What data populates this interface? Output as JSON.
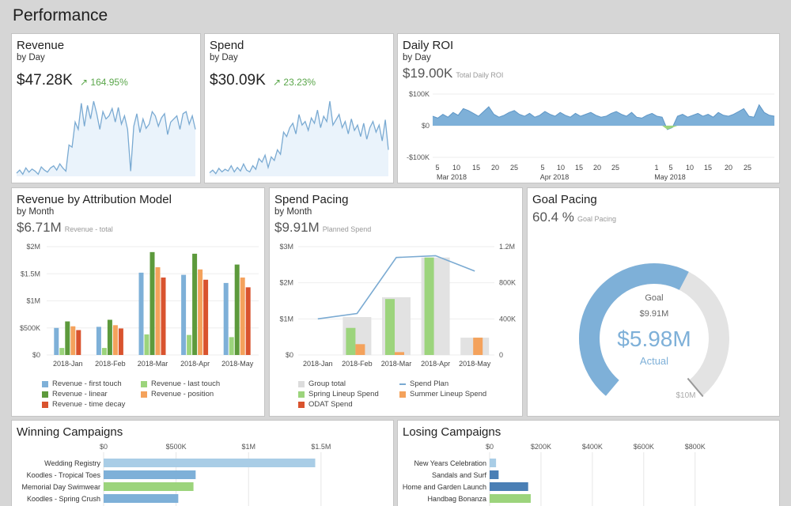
{
  "page": {
    "title": "Performance"
  },
  "revenue": {
    "title": "Revenue",
    "subtitle": "by Day",
    "value": "$47.28K",
    "delta": "164.95%",
    "series": [
      3,
      6,
      2,
      8,
      4,
      7,
      5,
      2,
      9,
      6,
      4,
      8,
      10,
      6,
      12,
      8,
      5,
      30,
      28,
      52,
      45,
      70,
      48,
      68,
      55,
      72,
      60,
      45,
      62,
      55,
      58,
      65,
      52,
      66,
      50,
      58,
      45,
      5,
      48,
      60,
      42,
      55,
      46,
      50,
      62,
      58,
      48,
      56,
      60,
      40,
      52,
      55,
      58,
      45,
      60,
      62,
      50,
      58,
      45
    ]
  },
  "spend": {
    "title": "Spend",
    "subtitle": "by Day",
    "value": "$30.09K",
    "delta": "23.23%",
    "series": [
      4,
      7,
      3,
      9,
      5,
      8,
      6,
      12,
      5,
      10,
      6,
      14,
      7,
      5,
      12,
      8,
      20,
      16,
      24,
      10,
      22,
      18,
      30,
      25,
      50,
      45,
      55,
      60,
      48,
      70,
      58,
      62,
      52,
      66,
      60,
      75,
      55,
      68,
      62,
      85,
      58,
      64,
      70,
      55,
      62,
      48,
      65,
      52,
      58,
      45,
      60,
      42,
      55,
      62,
      50,
      58,
      40,
      64,
      30
    ]
  },
  "roi": {
    "title": "Daily ROI",
    "subtitle": "by Day",
    "value": "$19.00K",
    "value_note": "Total Daily ROI",
    "y_ticks": [
      "$100K",
      "$0",
      "-$100K"
    ],
    "x_ticks": [
      "5",
      "10",
      "15",
      "20",
      "25",
      "5",
      "10",
      "15",
      "20",
      "25",
      "1",
      "5",
      "10",
      "15",
      "20",
      "25"
    ],
    "month_labels": [
      "Mar 2018",
      "Apr 2018",
      "May 2018"
    ],
    "series": [
      10,
      8,
      12,
      9,
      14,
      11,
      18,
      16,
      13,
      10,
      15,
      20,
      12,
      9,
      11,
      14,
      16,
      12,
      10,
      13,
      9,
      11,
      15,
      12,
      10,
      14,
      11,
      9,
      13,
      10,
      12,
      14,
      11,
      9,
      10,
      13,
      15,
      12,
      10,
      14,
      9,
      8,
      11,
      13,
      10,
      9,
      -4,
      -2,
      10,
      12,
      9,
      11,
      13,
      10,
      12,
      9,
      14,
      11,
      10,
      12,
      15,
      18,
      10,
      9,
      22,
      14,
      11,
      10
    ]
  },
  "attribution": {
    "title": "Revenue by Attribution Model",
    "subtitle": "by Month",
    "value": "$6.71M",
    "value_note": "Revenue - total",
    "legend": [
      "Revenue - first touch",
      "Revenue - last touch",
      "Revenue - linear",
      "Revenue - position",
      "Revenue - time decay"
    ]
  },
  "spend_pacing": {
    "title": "Spend Pacing",
    "subtitle": "by Month",
    "value": "$9.91M",
    "value_note": "Planned Spend",
    "legend": [
      "Group total",
      "Spend Plan",
      "Spring Lineup Spend",
      "Summer Lineup Spend",
      "ODAT Spend"
    ]
  },
  "goal_pacing": {
    "title": "Goal Pacing",
    "value": "60.4 %",
    "value_note": "Goal Pacing",
    "goal_label": "Goal",
    "goal_value": "$9.91M",
    "actual_value": "$5.98M",
    "actual_label": "Actual",
    "max_label": "$10M",
    "fraction": 0.598
  },
  "winning": {
    "title": "Winning Campaigns",
    "x_ticks": [
      "$0",
      "$500K",
      "$1M",
      "$1.5M"
    ]
  },
  "losing": {
    "title": "Losing Campaigns",
    "x_ticks": [
      "$0",
      "$200K",
      "$400K",
      "$600K",
      "$800K"
    ]
  },
  "colors": {
    "blue": "#7eb0d8",
    "green": "#9cd47c",
    "dkgreen": "#5d9a3c",
    "orange": "#f4a25c",
    "red": "#d9532e",
    "grey": "#e6e6e6",
    "line": "#7aaad2"
  },
  "chart_data": [
    {
      "type": "bar",
      "title": "Revenue by Attribution Model",
      "categories": [
        "2018-Jan",
        "2018-Feb",
        "2018-Mar",
        "2018-Apr",
        "2018-May"
      ],
      "y_ticks": [
        "$2M",
        "$1.5M",
        "$1M",
        "$500K",
        "$0"
      ],
      "ylim": [
        0,
        2000000
      ],
      "series": [
        {
          "name": "Revenue - first touch",
          "values": [
            500000,
            520000,
            1520000,
            1480000,
            1330000
          ]
        },
        {
          "name": "Revenue - last touch",
          "values": [
            130000,
            130000,
            380000,
            370000,
            330000
          ]
        },
        {
          "name": "Revenue - linear",
          "values": [
            620000,
            650000,
            1900000,
            1870000,
            1670000
          ]
        },
        {
          "name": "Revenue - position",
          "values": [
            530000,
            550000,
            1620000,
            1580000,
            1430000
          ]
        },
        {
          "name": "Revenue - time decay",
          "values": [
            460000,
            490000,
            1430000,
            1390000,
            1250000
          ]
        }
      ]
    },
    {
      "type": "bar",
      "title": "Spend Pacing",
      "categories": [
        "2018-Jan",
        "2018-Feb",
        "2018-Mar",
        "2018-Apr",
        "2018-May"
      ],
      "y_ticks": [
        "$3M",
        "$2M",
        "$1M",
        "$0"
      ],
      "y2_ticks": [
        "1.2M",
        "800K",
        "400K",
        "0"
      ],
      "ylim": [
        0,
        3000000
      ],
      "y2lim": [
        0,
        1200000
      ],
      "series": [
        {
          "name": "Group total",
          "values": [
            0,
            1050000,
            1600000,
            2700000,
            480000
          ]
        },
        {
          "name": "Spring Lineup Spend",
          "values": [
            0,
            750000,
            1550000,
            2700000,
            0
          ]
        },
        {
          "name": "Summer Lineup Spend",
          "values": [
            0,
            300000,
            80000,
            0,
            480000
          ]
        },
        {
          "name": "ODAT Spend",
          "values": [
            0,
            0,
            0,
            0,
            0
          ]
        },
        {
          "name": "Spend Plan",
          "axis": "right",
          "values": [
            400000,
            460000,
            1080000,
            1100000,
            930000
          ]
        }
      ]
    },
    {
      "type": "bar",
      "title": "Winning Campaigns",
      "orientation": "horizontal",
      "categories": [
        "Wedding Registry",
        "Koodles - Tropical Toes",
        "Memorial Day Swimwear",
        "Koodles - Spring Crush"
      ],
      "values": [
        1460000,
        635000,
        620000,
        515000
      ],
      "bar_colors": [
        "#a9cde6",
        "#7eb0d8",
        "#9cd47c",
        "#7eb0d8"
      ],
      "xlim": [
        0,
        1550000
      ]
    },
    {
      "type": "bar",
      "title": "Losing Campaigns",
      "orientation": "horizontal",
      "categories": [
        "New Years Celebration",
        "Sandals and Surf",
        "Home and Garden Launch",
        "Handbag Bonanza"
      ],
      "values": [
        25000,
        35000,
        150000,
        160000
      ],
      "bar_colors": [
        "#a9cde6",
        "#4a7fb5",
        "#4a7fb5",
        "#9cd47c"
      ],
      "xlim": [
        0,
        850000
      ]
    }
  ]
}
